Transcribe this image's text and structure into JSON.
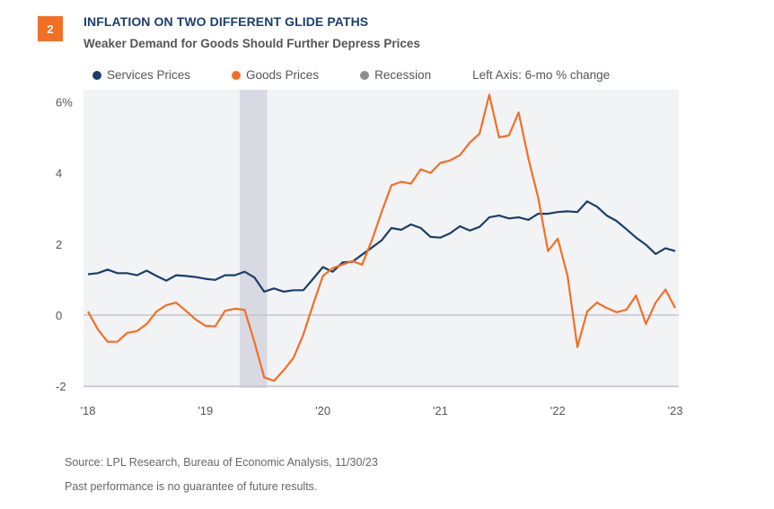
{
  "header": {
    "badge": "2",
    "title": "INFLATION ON TWO DIFFERENT GLIDE PATHS",
    "subtitle": "Weaker Demand for Goods Should Further Depress Prices"
  },
  "legend": {
    "items": [
      {
        "label": "Services Prices",
        "color": "#1b3f6b"
      },
      {
        "label": "Goods Prices",
        "color": "#f26f26"
      },
      {
        "label": "Recession",
        "color": "#8e8e93"
      }
    ],
    "note": "Left Axis: 6-mo % change"
  },
  "footer": {
    "source": "Source: LPL Research, Bureau of Economic Analysis,  11/30/23",
    "disclaimer": "Past performance is no guarantee of future results."
  },
  "chart_data": {
    "type": "line",
    "title": "INFLATION ON TWO DIFFERENT GLIDE PATHS",
    "subtitle": "Weaker Demand for Goods Should Further Depress Prices",
    "xlabel": "",
    "ylabel": "Left Axis: 6-mo % change",
    "x_tick_labels": [
      "'18",
      "'19",
      "'20",
      "'21",
      "'22",
      "'23"
    ],
    "x_tick_positions": [
      0,
      12,
      24,
      36,
      48,
      60
    ],
    "x_range": [
      0,
      60
    ],
    "y_ticks": [
      -2,
      0,
      2,
      4,
      6
    ],
    "y_tick_labels": [
      "-2",
      "0",
      "2",
      "4",
      "6%"
    ],
    "ylim": [
      -2,
      6
    ],
    "grid": "horizontal at 0 and -2 baseline only",
    "legend_position": "top",
    "x_note": "x is a point index (approx. monthly) measured against the printed tick labels. The recession band falls between the '19 and '20 ticks, which does not match any US recession on those dates, so calendar months are not assigned.",
    "recession_band": {
      "x_start": 15.5,
      "x_end": 18.3
    },
    "series": [
      {
        "name": "Services Prices",
        "color": "#1b3f6b",
        "values": [
          1.15,
          1.18,
          1.28,
          1.18,
          1.18,
          1.12,
          1.25,
          1.1,
          0.97,
          1.12,
          1.1,
          1.07,
          1.02,
          0.99,
          1.12,
          1.12,
          1.22,
          1.06,
          0.66,
          0.75,
          0.66,
          0.7,
          0.7,
          1.02,
          1.35,
          1.22,
          1.48,
          1.5,
          1.7,
          1.9,
          2.1,
          2.45,
          2.4,
          2.55,
          2.45,
          2.2,
          2.18,
          2.3,
          2.5,
          2.38,
          2.48,
          2.75,
          2.8,
          2.72,
          2.75,
          2.68,
          2.85,
          2.85,
          2.9,
          2.92,
          2.9,
          3.2,
          3.05,
          2.8,
          2.65,
          2.42,
          2.18,
          1.98,
          1.72,
          1.88,
          1.8
        ]
      },
      {
        "name": "Goods Prices",
        "color": "#f26f26",
        "values": [
          0.1,
          -0.4,
          -0.75,
          -0.75,
          -0.5,
          -0.45,
          -0.25,
          0.1,
          0.28,
          0.35,
          0.12,
          -0.12,
          -0.3,
          -0.32,
          0.12,
          0.18,
          0.15,
          -0.75,
          -1.75,
          -1.85,
          -1.55,
          -1.2,
          -0.55,
          0.3,
          1.1,
          1.32,
          1.42,
          1.52,
          1.42,
          2.1,
          2.9,
          3.65,
          3.75,
          3.7,
          4.1,
          4.0,
          4.28,
          4.35,
          4.5,
          4.85,
          5.1,
          6.2,
          5.0,
          5.05,
          5.7,
          4.4,
          3.3,
          1.8,
          2.15,
          1.1,
          -0.9,
          0.1,
          0.35,
          0.2,
          0.08,
          0.15,
          0.55,
          -0.25,
          0.35,
          0.72,
          0.2
        ]
      }
    ]
  }
}
